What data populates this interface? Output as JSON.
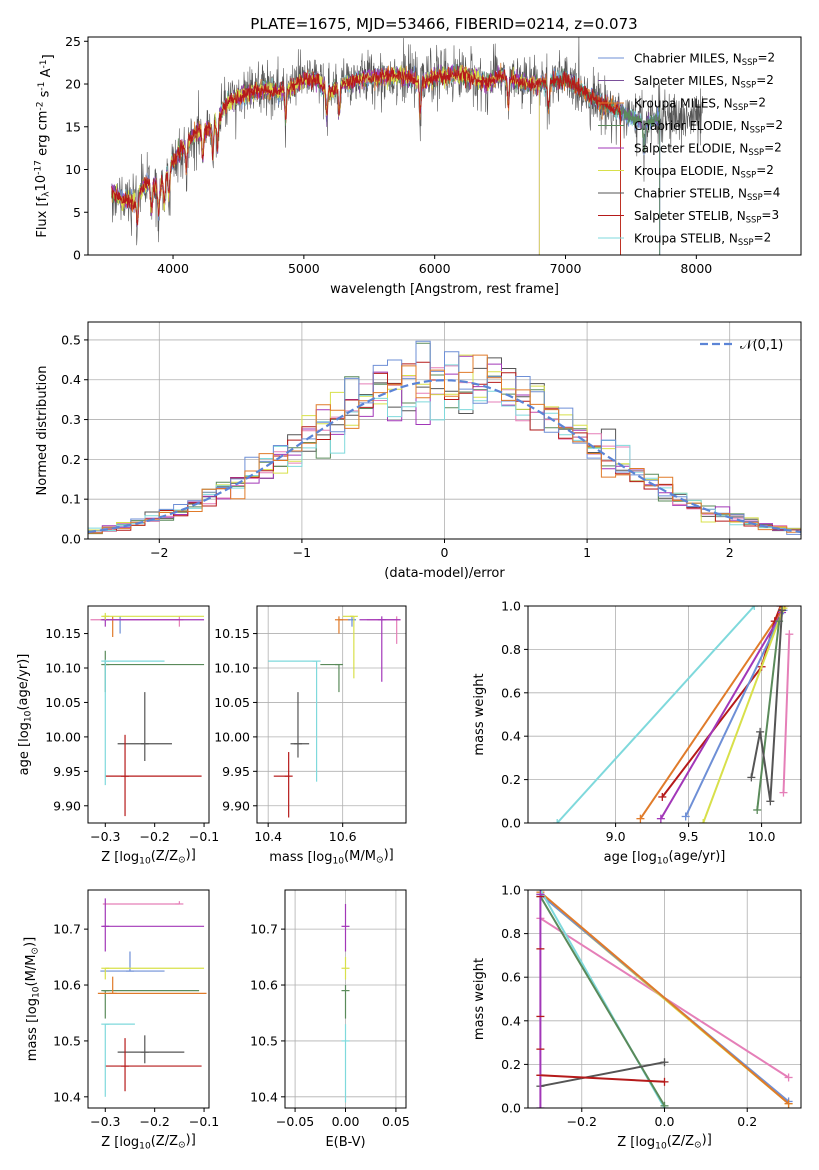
{
  "colors": {
    "Chabrier MILES": "#6e8fd6",
    "Salpeter MILES": "#7a4f9a",
    "Kroupa MILES": "#e07b2a",
    "Chabrier ELODIE": "#5a8a5a",
    "Salpeter ELODIE": "#a237b8",
    "Kroupa ELODIE": "#d8e04a",
    "Chabrier STELIB": "#555555",
    "Salpeter STELIB": "#b51a1a",
    "Kroupa STELIB": "#7fd9dc",
    "pink": "#e57fb8",
    "gauss": "#5b84d6"
  },
  "chart_data": [
    {
      "id": "spectrum",
      "type": "line",
      "title": "PLATE=1675, MJD=53466, FIBERID=0214, z=0.073",
      "xlabel": "wavelength [Angstrom, rest frame]",
      "ylabel": "Flux [f$_\\lambda$10$^{-17}$ erg cm$^{-2}$ s$^{-1}$ A$^{-1}$]",
      "xlim": [
        3350,
        8800
      ],
      "ylim": [
        0,
        25.5
      ],
      "xticks": [
        4000,
        5000,
        6000,
        7000,
        8000
      ],
      "yticks": [
        0,
        5,
        10,
        15,
        20,
        25
      ],
      "legend": [
        {
          "name": "Chabrier MILES",
          "text": "Chabrier MILES, N$_{SSP}$=2"
        },
        {
          "name": "Salpeter MILES",
          "text": "Salpeter MILES, N$_{SSP}$=2"
        },
        {
          "name": "Kroupa MILES",
          "text": "Kroupa MILES, N$_{SSP}$=2"
        },
        {
          "name": "Chabrier ELODIE",
          "text": "Chabrier ELODIE, N$_{SSP}$=2"
        },
        {
          "name": "Salpeter ELODIE",
          "text": "Salpeter ELODIE, N$_{SSP}$=2"
        },
        {
          "name": "Kroupa ELODIE",
          "text": "Kroupa ELODIE, N$_{SSP}$=2"
        },
        {
          "name": "Chabrier STELIB",
          "text": "Chabrier STELIB, N$_{SSP}$=4"
        },
        {
          "name": "Salpeter STELIB",
          "text": "Salpeter STELIB, N$_{SSP}$=3"
        },
        {
          "name": "Kroupa STELIB",
          "text": "Kroupa STELIB, N$_{SSP}$=2"
        }
      ],
      "legend_loc": "upper right",
      "continuum": [
        [
          3530,
          7.5
        ],
        [
          3600,
          6.5
        ],
        [
          3700,
          6.3
        ],
        [
          3800,
          8.5
        ],
        [
          3900,
          8.0
        ],
        [
          3950,
          9.5
        ],
        [
          4000,
          11.0
        ],
        [
          4100,
          13.0
        ],
        [
          4200,
          14.5
        ],
        [
          4300,
          14.8
        ],
        [
          4400,
          17.5
        ],
        [
          4500,
          18.5
        ],
        [
          4600,
          19.0
        ],
        [
          4700,
          19.5
        ],
        [
          4800,
          19.0
        ],
        [
          4900,
          19.5
        ],
        [
          5000,
          20.5
        ],
        [
          5100,
          20.5
        ],
        [
          5200,
          19.0
        ],
        [
          5300,
          20.0
        ],
        [
          5400,
          20.5
        ],
        [
          5500,
          20.8
        ],
        [
          5600,
          20.8
        ],
        [
          5700,
          21.0
        ],
        [
          5800,
          20.8
        ],
        [
          5900,
          20.0
        ],
        [
          6000,
          21.0
        ],
        [
          6100,
          21.0
        ],
        [
          6200,
          21.2
        ],
        [
          6300,
          20.8
        ],
        [
          6400,
          20.0
        ],
        [
          6500,
          21.0
        ],
        [
          6600,
          20.5
        ],
        [
          6700,
          20.0
        ],
        [
          6800,
          20.0
        ],
        [
          6900,
          20.3
        ],
        [
          7000,
          20.5
        ],
        [
          7100,
          19.5
        ],
        [
          7200,
          18.5
        ],
        [
          7300,
          17.5
        ],
        [
          7400,
          17.0
        ],
        [
          7500,
          16.0
        ],
        [
          7600,
          15.5
        ],
        [
          7700,
          16.0
        ]
      ],
      "model_ends": {
        "Chabrier STELIB": 8050,
        "Kroupa STELIB": 7720,
        "Chabrier MILES": 7720,
        "Salpeter MILES": 7720,
        "Chabrier ELODIE": 7720,
        "Kroupa MILES": 7420,
        "Salpeter STELIB": 7420,
        "Salpeter ELODIE": 6800,
        "Kroupa ELODIE": 6800
      }
    },
    {
      "id": "residuals",
      "type": "histogram",
      "xlabel": "(data-model)/error",
      "ylabel": "Normed distribution",
      "xlim": [
        -2.5,
        2.5
      ],
      "ylim": [
        0,
        0.545
      ],
      "xticks": [
        -2,
        -1,
        0,
        1,
        2
      ],
      "yticks": [
        0.0,
        0.1,
        0.2,
        0.3,
        0.4,
        0.5
      ],
      "legend": [
        {
          "name": "gauss",
          "text": "$\\mathcal{N}(0,1)$"
        }
      ],
      "legend_loc": "upper right",
      "bin_width": 0.1,
      "bins_from": -2.5
    },
    {
      "id": "ageZ",
      "type": "errorbar",
      "xlabel": "Z [log$_{10}$(Z/Z$_\\odot$)]",
      "ylabel": "age  [log$_{10}$($age/yr$)]",
      "xlim": [
        -0.335,
        -0.09
      ],
      "ylim": [
        9.875,
        10.19
      ],
      "xticks": [
        -0.3,
        -0.2,
        -0.1
      ],
      "yticks": [
        9.9,
        9.95,
        10.0,
        10.05,
        10.1,
        10.15
      ]
    },
    {
      "id": "ageMass",
      "type": "errorbar",
      "xlabel": "mass [log$_{10}$($M/M_\\odot$)]",
      "ylabel": "",
      "xlim": [
        10.37,
        10.77
      ],
      "ylim": [
        9.875,
        10.19
      ],
      "xticks": [
        10.4,
        10.6
      ],
      "yticks": [
        9.9,
        9.95,
        10.0,
        10.05,
        10.1,
        10.15
      ]
    },
    {
      "id": "ageCDF",
      "type": "line",
      "xlabel": "age  [log$_{10}$($age/yr$)]",
      "ylabel": "mass weight",
      "xlim": [
        8.4,
        10.27
      ],
      "ylim": [
        0,
        1
      ],
      "xticks": [
        9.0,
        9.5,
        10.0
      ],
      "yticks": [
        0.0,
        0.2,
        0.4,
        0.6,
        0.8,
        1.0
      ]
    },
    {
      "id": "massZ",
      "type": "errorbar",
      "xlabel": "Z [log$_{10}$(Z/Z$_\\odot$)]",
      "ylabel": "mass [log$_{10}$($M/M_\\odot$)]",
      "xlim": [
        -0.335,
        -0.09
      ],
      "ylim": [
        10.38,
        10.77
      ],
      "xticks": [
        -0.3,
        -0.2,
        -0.1
      ],
      "yticks": [
        10.4,
        10.5,
        10.6,
        10.7
      ]
    },
    {
      "id": "massEBV",
      "type": "errorbar",
      "xlabel": "E(B-V)",
      "ylabel": "",
      "xlim": [
        -0.06,
        0.06
      ],
      "ylim": [
        10.38,
        10.77
      ],
      "xticks": [
        -0.05,
        0.0,
        0.05
      ],
      "yticks": [
        10.4,
        10.5,
        10.6,
        10.7
      ]
    },
    {
      "id": "ZCDF",
      "type": "line",
      "xlabel": "Z [log$_{10}$(Z/Z$_\\odot$)]",
      "ylabel": "mass weight",
      "xlim": [
        -0.33,
        0.33
      ],
      "ylim": [
        0,
        1
      ],
      "xticks": [
        -0.2,
        0.0,
        0.2
      ],
      "yticks": [
        0.0,
        0.2,
        0.4,
        0.6,
        0.8,
        1.0
      ]
    }
  ],
  "errorbars": {
    "ageZ": [
      {
        "c": "Chabrier STELIB",
        "x": -0.22,
        "xerr": [
          0.055,
          0.055
        ],
        "y": 9.99,
        "yerr": [
          0.025,
          0.075
        ]
      },
      {
        "c": "Salpeter STELIB",
        "x": -0.26,
        "xerr": [
          0.04,
          0.155
        ],
        "y": 9.943,
        "yerr": [
          0.058,
          0.06
        ]
      },
      {
        "c": "Chabrier ELODIE",
        "x": -0.3,
        "xerr": [
          0.002,
          0.2
        ],
        "y": 10.105,
        "yerr": [
          0.04,
          0.02
        ]
      },
      {
        "c": "Kroupa STELIB",
        "x": -0.3,
        "xerr": [
          0.002,
          0.12
        ],
        "y": 10.11,
        "yerr": [
          0.18,
          0.002
        ]
      },
      {
        "c": "Kroupa MILES",
        "x": -0.285,
        "xerr": [
          0.025,
          0.0
        ],
        "y": 10.17,
        "yerr": [
          0.025,
          0.005
        ]
      },
      {
        "c": "Chabrier MILES",
        "x": -0.27,
        "xerr": [
          0.04,
          0.0
        ],
        "y": 10.17,
        "yerr": [
          0.02,
          0.005
        ]
      },
      {
        "c": "pink",
        "x": -0.15,
        "xerr": [
          0.18,
          0.0
        ],
        "y": 10.17,
        "yerr": [
          0.01,
          0.005
        ]
      },
      {
        "c": "Salpeter ELODIE",
        "x": -0.3,
        "xerr": [
          0.005,
          0.2
        ],
        "y": 10.17,
        "yerr": [
          0.01,
          0.005
        ]
      },
      {
        "c": "Kroupa ELODIE",
        "x": -0.3,
        "xerr": [
          0.005,
          0.2
        ],
        "y": 10.175,
        "yerr": [
          0.005,
          0.005
        ]
      }
    ],
    "ageMass": [
      {
        "c": "Chabrier STELIB",
        "x": 10.48,
        "xerr": [
          0.02,
          0.03
        ],
        "y": 9.99,
        "yerr": [
          0.02,
          0.075
        ]
      },
      {
        "c": "Salpeter STELIB",
        "x": 10.455,
        "xerr": [
          0.04,
          0.0
        ],
        "y": 9.943,
        "yerr": [
          0.06,
          0.035
        ]
      },
      {
        "c": "Chabrier ELODIE",
        "x": 10.59,
        "xerr": [
          0.05,
          0.0
        ],
        "y": 10.105,
        "yerr": [
          0.04,
          0.0
        ]
      },
      {
        "c": "Kroupa STELIB",
        "x": 10.53,
        "xerr": [
          0.13,
          0.0
        ],
        "y": 10.11,
        "yerr": [
          0.175,
          0.0
        ]
      },
      {
        "c": "Kroupa MILES",
        "x": 10.59,
        "xerr": [
          0.0,
          0.03
        ],
        "y": 10.17,
        "yerr": [
          0.02,
          0.005
        ]
      },
      {
        "c": "Chabrier MILES",
        "x": 10.625,
        "xerr": [
          0.0,
          0.01
        ],
        "y": 10.17,
        "yerr": [
          0.01,
          0.005
        ]
      },
      {
        "c": "pink",
        "x": 10.745,
        "xerr": [
          0.08,
          0.0
        ],
        "y": 10.17,
        "yerr": [
          0.035,
          0.005
        ]
      },
      {
        "c": "Salpeter ELODIE",
        "x": 10.705,
        "xerr": [
          0.06,
          0.05
        ],
        "y": 10.17,
        "yerr": [
          0.09,
          0.005
        ]
      },
      {
        "c": "Kroupa ELODIE",
        "x": 10.63,
        "xerr": [
          0.03,
          0.0
        ],
        "y": 10.175,
        "yerr": [
          0.09,
          0.0
        ]
      }
    ],
    "massZ": [
      {
        "c": "Chabrier STELIB",
        "x": -0.22,
        "xerr": [
          0.055,
          0.08
        ],
        "y": 10.48,
        "yerr": [
          0.02,
          0.03
        ]
      },
      {
        "c": "Salpeter STELIB",
        "x": -0.26,
        "xerr": [
          0.04,
          0.155
        ],
        "y": 10.455,
        "yerr": [
          0.045,
          0.05
        ]
      },
      {
        "c": "Chabrier ELODIE",
        "x": -0.3,
        "xerr": [
          0.005,
          0.19
        ],
        "y": 10.59,
        "yerr": [
          0.05,
          0.0
        ]
      },
      {
        "c": "Kroupa STELIB",
        "x": -0.3,
        "xerr": [
          0.0,
          0.06
        ],
        "y": 10.53,
        "yerr": [
          0.13,
          0.0
        ]
      },
      {
        "c": "Kroupa MILES",
        "x": -0.285,
        "xerr": [
          0.03,
          0.19
        ],
        "y": 10.585,
        "yerr": [
          0.0,
          0.03
        ]
      },
      {
        "c": "Chabrier MILES",
        "x": -0.25,
        "xerr": [
          0.06,
          0.07
        ],
        "y": 10.625,
        "yerr": [
          0.0,
          0.035
        ]
      },
      {
        "c": "pink",
        "x": -0.15,
        "xerr": [
          0.155,
          0.0
        ],
        "y": 10.745,
        "yerr": [
          0.0,
          0.005
        ]
      },
      {
        "c": "Salpeter ELODIE",
        "x": -0.3,
        "xerr": [
          0.005,
          0.2
        ],
        "y": 10.705,
        "yerr": [
          0.045,
          0.05
        ]
      },
      {
        "c": "Kroupa ELODIE",
        "x": -0.3,
        "xerr": [
          0.0,
          0.2
        ],
        "y": 10.63,
        "yerr": [
          0.02,
          0.0
        ]
      }
    ],
    "massEBV": [
      {
        "c": "Salpeter ELODIE",
        "x": 0.0,
        "xerr": [
          0.0,
          0.0
        ],
        "y": 10.705,
        "yerr": [
          0.045,
          0.04
        ]
      },
      {
        "c": "Kroupa ELODIE",
        "x": 0.0,
        "xerr": [
          0.0,
          0.0
        ],
        "y": 10.63,
        "yerr": [
          0.02,
          0.02
        ]
      },
      {
        "c": "Chabrier ELODIE",
        "x": 0.0,
        "xerr": [
          0.0,
          0.0
        ],
        "y": 10.59,
        "yerr": [
          0.05,
          0.01
        ]
      },
      {
        "c": "Kroupa STELIB",
        "x": 0.0,
        "xerr": [
          0.0,
          0.0
        ],
        "y": 10.5,
        "yerr": [
          0.11,
          0.03
        ]
      }
    ]
  },
  "cdf_age": [
    {
      "c": "Kroupa STELIB",
      "pts": [
        [
          8.6,
          0.0
        ],
        [
          9.95,
          1.0
        ]
      ]
    },
    {
      "c": "Kroupa MILES",
      "pts": [
        [
          9.17,
          0.02
        ],
        [
          10.16,
          1.0
        ]
      ]
    },
    {
      "c": "Salpeter STELIB",
      "pts": [
        [
          9.32,
          0.12
        ],
        [
          10.0,
          0.72
        ],
        [
          10.09,
          0.93
        ],
        [
          10.13,
          1.0
        ]
      ]
    },
    {
      "c": "Salpeter ELODIE",
      "pts": [
        [
          9.31,
          0.02
        ],
        [
          10.14,
          0.97
        ]
      ]
    },
    {
      "c": "Chabrier MILES",
      "pts": [
        [
          9.48,
          0.03
        ],
        [
          10.15,
          0.98
        ]
      ]
    },
    {
      "c": "Kroupa ELODIE",
      "pts": [
        [
          9.6,
          0.0
        ],
        [
          10.15,
          0.99
        ]
      ]
    },
    {
      "c": "Chabrier ELODIE",
      "pts": [
        [
          9.97,
          0.06
        ],
        [
          10.12,
          0.93
        ]
      ]
    },
    {
      "c": "Chabrier STELIB",
      "pts": [
        [
          9.93,
          0.21
        ],
        [
          9.99,
          0.42
        ],
        [
          10.06,
          0.1
        ],
        [
          10.14,
          0.98
        ]
      ]
    },
    {
      "c": "pink",
      "pts": [
        [
          10.15,
          0.14
        ],
        [
          10.19,
          0.87
        ]
      ]
    }
  ],
  "cdf_Z": [
    {
      "c": "pink",
      "pts": [
        [
          -0.3,
          0.87
        ],
        [
          0.3,
          0.14
        ]
      ]
    },
    {
      "c": "Kroupa ELODIE",
      "pts": [
        [
          -0.3,
          0.98
        ],
        [
          0.3,
          0.02
        ]
      ]
    },
    {
      "c": "Chabrier MILES",
      "pts": [
        [
          -0.3,
          0.98
        ],
        [
          0.3,
          0.03
        ]
      ]
    },
    {
      "c": "Kroupa MILES",
      "pts": [
        [
          -0.3,
          0.99
        ],
        [
          0.3,
          0.02
        ]
      ]
    },
    {
      "c": "Kroupa STELIB",
      "pts": [
        [
          -0.3,
          1.0
        ],
        [
          0.0,
          0.0
        ]
      ]
    },
    {
      "c": "Chabrier ELODIE",
      "pts": [
        [
          -0.3,
          0.97
        ],
        [
          0.0,
          0.01
        ]
      ]
    },
    {
      "c": "Chabrier STELIB",
      "pts": [
        [
          -0.3,
          0.1
        ],
        [
          0.0,
          0.21
        ]
      ]
    },
    {
      "c": "Salpeter STELIB",
      "pts": [
        [
          -0.3,
          0.15
        ],
        [
          0.0,
          0.12
        ]
      ]
    },
    {
      "c": "Salpeter ELODIE",
      "pts": [
        [
          -0.3,
          0.0
        ],
        [
          -0.3,
          0.98
        ]
      ]
    }
  ],
  "cdf_Z_vticks": [
    0.15,
    0.27,
    0.42,
    0.73,
    0.97
  ]
}
